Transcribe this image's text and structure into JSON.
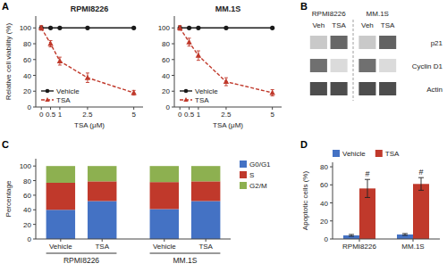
{
  "chart_data": [
    {
      "type": "line",
      "title": "RPMI8226",
      "annotations": [
        "A"
      ],
      "xlabel": "TSA (μM)",
      "ylabel": "Relative cell viability (%)",
      "x": [
        0,
        0.5,
        1,
        2.5,
        5
      ],
      "xlim": [
        -0.3,
        5.5
      ],
      "xticks": [
        0,
        0.5,
        1,
        2.5,
        5
      ],
      "ylim": [
        0,
        115
      ],
      "yticks": [
        0,
        20,
        40,
        60,
        80,
        100
      ],
      "legend": "lower left",
      "series": [
        {
          "name": "Vehicle",
          "color": "#1a1a1a",
          "marker": "circle",
          "line_style": "solid",
          "values": [
            100,
            100,
            100,
            100,
            100
          ]
        },
        {
          "name": "TSA",
          "color": "#c0392b",
          "marker": "triangle",
          "line_style": "dashed",
          "values": [
            100,
            80,
            58,
            37,
            18
          ],
          "errors": [
            3,
            4,
            5,
            6,
            3
          ]
        }
      ]
    },
    {
      "type": "line",
      "title": "MM.1S",
      "xlabel": "TSA (μM)",
      "x": [
        0,
        0.5,
        1,
        2.5,
        5
      ],
      "xlim": [
        -0.3,
        5.5
      ],
      "xticks": [
        0,
        0.5,
        1,
        2.5,
        5
      ],
      "ylim": [
        0,
        115
      ],
      "yticks": [
        0,
        20,
        40,
        60,
        80,
        100
      ],
      "legend": "lower left",
      "series": [
        {
          "name": "Vehicle",
          "color": "#1a1a1a",
          "marker": "circle",
          "line_style": "solid",
          "values": [
            100,
            100,
            100,
            100,
            100
          ]
        },
        {
          "name": "TSA",
          "color": "#c0392b",
          "marker": "triangle",
          "line_style": "dashed",
          "values": [
            100,
            82,
            65,
            32,
            18
          ],
          "errors": [
            3,
            5,
            6,
            5,
            4
          ]
        }
      ]
    },
    {
      "type": "blot",
      "annotations": [
        "B"
      ],
      "groups": [
        "RPMI8226",
        "MM.1S"
      ],
      "categories": [
        "Veh",
        "TSA",
        "Veh",
        "TSA"
      ],
      "rows": [
        "p21",
        "Cyclin D1",
        "Actin"
      ],
      "cells": [
        [
          0.79,
          0.405,
          0.79,
          0.384
        ],
        [
          0.44,
          0.86,
          0.44,
          0.86
        ],
        [
          0.3,
          0.3,
          0.3,
          0.3
        ]
      ]
    },
    {
      "type": "bar",
      "stacked": true,
      "annotations": [
        "C"
      ],
      "ylabel": "Percentage",
      "categories": [
        "Vehicle",
        "TSA",
        "Vehicle",
        "TSA"
      ],
      "groups": [
        "RPMI8226",
        "MM.1S"
      ],
      "ylim": [
        0,
        110
      ],
      "yticks": [
        0,
        20,
        40,
        60,
        80,
        100
      ],
      "legend": "upper right",
      "series": [
        {
          "name": "G0/G1",
          "color": "#4472c4",
          "values": [
            40,
            52,
            41,
            52
          ]
        },
        {
          "name": "S",
          "color": "#c0392b",
          "values": [
            37,
            27,
            37,
            27
          ]
        },
        {
          "name": "G2/M",
          "color": "#8db050",
          "values": [
            23,
            21,
            22,
            21
          ]
        }
      ]
    },
    {
      "type": "bar",
      "annotations": [
        "D"
      ],
      "ylabel": "Apoptotic cells (%)",
      "categories": [
        "RPMI8226",
        "MM.1S"
      ],
      "ylim": [
        0,
        85
      ],
      "yticks": [
        0,
        20,
        40,
        60,
        80
      ],
      "legend": "upper left",
      "series": [
        {
          "name": "Vehicle",
          "color": "#4472c4",
          "values": [
            4,
            5
          ],
          "errors": [
            1,
            1
          ]
        },
        {
          "name": "TSA",
          "color": "#c0392b",
          "values": [
            56,
            61
          ],
          "errors": [
            10,
            7
          ],
          "annotations": [
            "#",
            "#"
          ]
        }
      ]
    }
  ]
}
